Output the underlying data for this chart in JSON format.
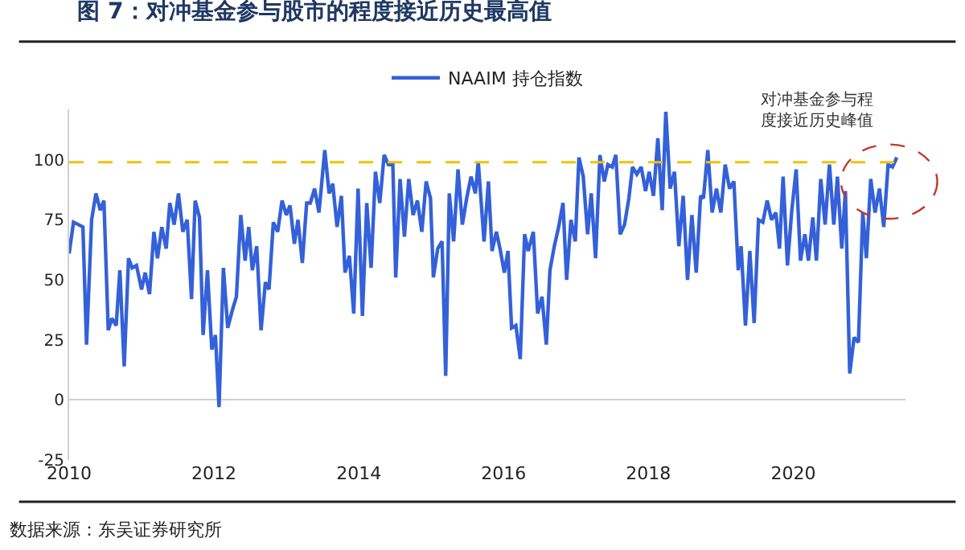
{
  "chart_data": {
    "type": "line",
    "title": "图 7：对冲基金参与股市的程度接近历史最高值",
    "x": [
      2010.0,
      2010.06,
      2010.13,
      2010.19,
      2010.24,
      2010.31,
      2010.37,
      2010.43,
      2010.48,
      2010.54,
      2010.59,
      2010.65,
      2010.7,
      2010.76,
      2010.82,
      2010.87,
      2010.93,
      2011.0,
      2011.05,
      2011.11,
      2011.17,
      2011.22,
      2011.28,
      2011.34,
      2011.39,
      2011.45,
      2011.51,
      2011.57,
      2011.63,
      2011.69,
      2011.74,
      2011.8,
      2011.85,
      2011.91,
      2011.97,
      2012.02,
      2012.07,
      2012.13,
      2012.19,
      2012.25,
      2012.31,
      2012.37,
      2012.43,
      2012.48,
      2012.53,
      2012.59,
      2012.65,
      2012.71,
      2012.76,
      2012.82,
      2012.88,
      2012.94,
      2013.0,
      2013.05,
      2013.11,
      2013.16,
      2013.22,
      2013.28,
      2013.33,
      2013.39,
      2013.45,
      2013.53,
      2013.59,
      2013.64,
      2013.7,
      2013.76,
      2013.81,
      2013.87,
      2013.93,
      2013.99,
      2014.05,
      2014.11,
      2014.17,
      2014.23,
      2014.29,
      2014.35,
      2014.41,
      2014.47,
      2014.51,
      2014.57,
      2014.63,
      2014.69,
      2014.75,
      2014.81,
      2014.87,
      2014.93,
      2014.99,
      2015.03,
      2015.09,
      2015.15,
      2015.2,
      2015.25,
      2015.31,
      2015.37,
      2015.43,
      2015.49,
      2015.55,
      2015.61,
      2015.65,
      2015.73,
      2015.79,
      2015.84,
      2015.9,
      2015.95,
      2016.01,
      2016.06,
      2016.11,
      2016.17,
      2016.23,
      2016.29,
      2016.34,
      2016.41,
      2016.47,
      2016.53,
      2016.59,
      2016.64,
      2016.7,
      2016.76,
      2016.82,
      2016.87,
      2016.93,
      2016.99,
      2017.04,
      2017.1,
      2017.16,
      2017.21,
      2017.27,
      2017.33,
      2017.39,
      2017.44,
      2017.5,
      2017.55,
      2017.61,
      2017.67,
      2017.73,
      2017.78,
      2017.84,
      2017.9,
      2017.96,
      2018.01,
      2018.07,
      2018.13,
      2018.19,
      2018.24,
      2018.3,
      2018.36,
      2018.42,
      2018.48,
      2018.54,
      2018.6,
      2018.66,
      2018.72,
      2018.76,
      2018.82,
      2018.88,
      2018.94,
      2019.0,
      2019.06,
      2019.12,
      2019.18,
      2019.24,
      2019.28,
      2019.34,
      2019.4,
      2019.46,
      2019.52,
      2019.58,
      2019.64,
      2019.7,
      2019.76,
      2019.81,
      2019.86,
      2019.92,
      2019.98,
      2020.04,
      2020.1,
      2020.16,
      2020.21,
      2020.27,
      2020.32,
      2020.38,
      2020.44,
      2020.5,
      2020.56,
      2020.61,
      2020.67,
      2020.72,
      2020.78,
      2020.84,
      2020.9,
      2020.96,
      2021.01,
      2021.07,
      2021.13,
      2021.19,
      2021.25,
      2021.31,
      2021.37,
      2021.43
    ],
    "series": [
      {
        "name": "NAAIM 持仓指数",
        "color": "#3461d9",
        "values": [
          61,
          74,
          73,
          72,
          23,
          75,
          86,
          79,
          83,
          29,
          34,
          31,
          54,
          14,
          59,
          55,
          56,
          46,
          53,
          44,
          70,
          59,
          72,
          63,
          82,
          73,
          86,
          70,
          75,
          42,
          83,
          76,
          27,
          54,
          21,
          27,
          -3,
          55,
          30,
          37,
          43,
          77,
          58,
          72,
          54,
          64,
          29,
          49,
          46,
          74,
          70,
          83,
          77,
          81,
          65,
          75,
          57,
          82,
          82,
          88,
          78,
          104,
          86,
          90,
          72,
          85,
          53,
          60,
          36,
          88,
          35,
          82,
          55,
          95,
          82,
          102,
          98,
          98,
          51,
          92,
          68,
          92,
          77,
          83,
          70,
          91,
          84,
          51,
          63,
          66,
          10,
          86,
          66,
          96,
          73,
          84,
          93,
          86,
          99,
          66,
          91,
          62,
          70,
          63,
          53,
          62,
          30,
          31,
          17,
          69,
          62,
          70,
          36,
          43,
          23,
          54,
          64,
          72,
          82,
          50,
          75,
          66,
          101,
          93,
          69,
          86,
          59,
          102,
          91,
          98,
          97,
          102,
          69,
          73,
          84,
          97,
          94,
          97,
          87,
          95,
          85,
          109,
          79,
          120,
          88,
          95,
          64,
          85,
          50,
          77,
          53,
          85,
          84,
          104,
          78,
          88,
          78,
          98,
          88,
          91,
          54,
          64,
          31,
          62,
          32,
          75,
          74,
          83,
          75,
          78,
          63,
          93,
          56,
          79,
          96,
          58,
          69,
          58,
          76,
          58,
          92,
          73,
          98,
          73,
          93,
          63,
          87,
          11,
          26,
          24,
          78,
          59,
          92,
          78,
          88,
          72,
          98,
          97,
          101
        ]
      }
    ],
    "xlim": [
      2010,
      2021.55
    ],
    "xticks": [
      {
        "value": 2010,
        "label": "2010"
      },
      {
        "value": 2012,
        "label": "2012"
      },
      {
        "value": 2014,
        "label": "2014"
      },
      {
        "value": 2016,
        "label": "2016"
      },
      {
        "value": 2018,
        "label": "2018"
      },
      {
        "value": 2020,
        "label": "2020"
      }
    ],
    "ylim": [
      -25,
      121
    ],
    "yticks": [
      -25,
      0,
      25,
      50,
      75,
      100
    ],
    "ref_lines": [
      {
        "axis": "y",
        "value": 99,
        "color": "#f2c200",
        "line_style": "dashed"
      }
    ],
    "annotations": [
      "对冲基金参与程度接近历史峰值",
      "数据来源：东吴证券研究所"
    ],
    "legend": "top",
    "marker": "none",
    "line_style": "solid"
  }
}
